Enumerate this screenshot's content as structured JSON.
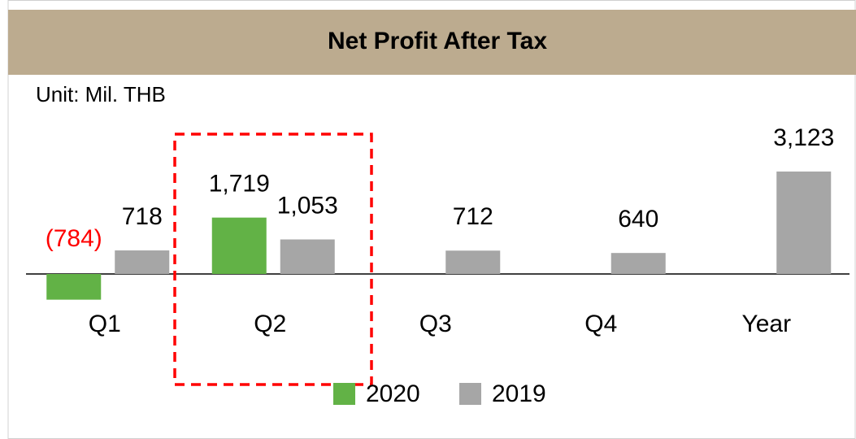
{
  "chart_data": {
    "type": "bar",
    "title": "Net Profit After Tax",
    "subtitle": "Unit: Mil. THB",
    "categories": [
      "Q1",
      "Q2",
      "Q3",
      "Q4",
      "Year"
    ],
    "series": [
      {
        "name": "2020",
        "color": "#62b246",
        "values": [
          -784,
          1719,
          null,
          null,
          null
        ],
        "value_labels": [
          "(784)",
          "1,719",
          null,
          null,
          null
        ]
      },
      {
        "name": "2019",
        "color": "#a6a6a6",
        "values": [
          718,
          1053,
          712,
          640,
          3123
        ],
        "value_labels": [
          null,
          "1,053",
          null,
          null,
          "3,123"
        ]
      }
    ],
    "negative_label_color": "#ff0000",
    "legend": "bottom"
  }
}
